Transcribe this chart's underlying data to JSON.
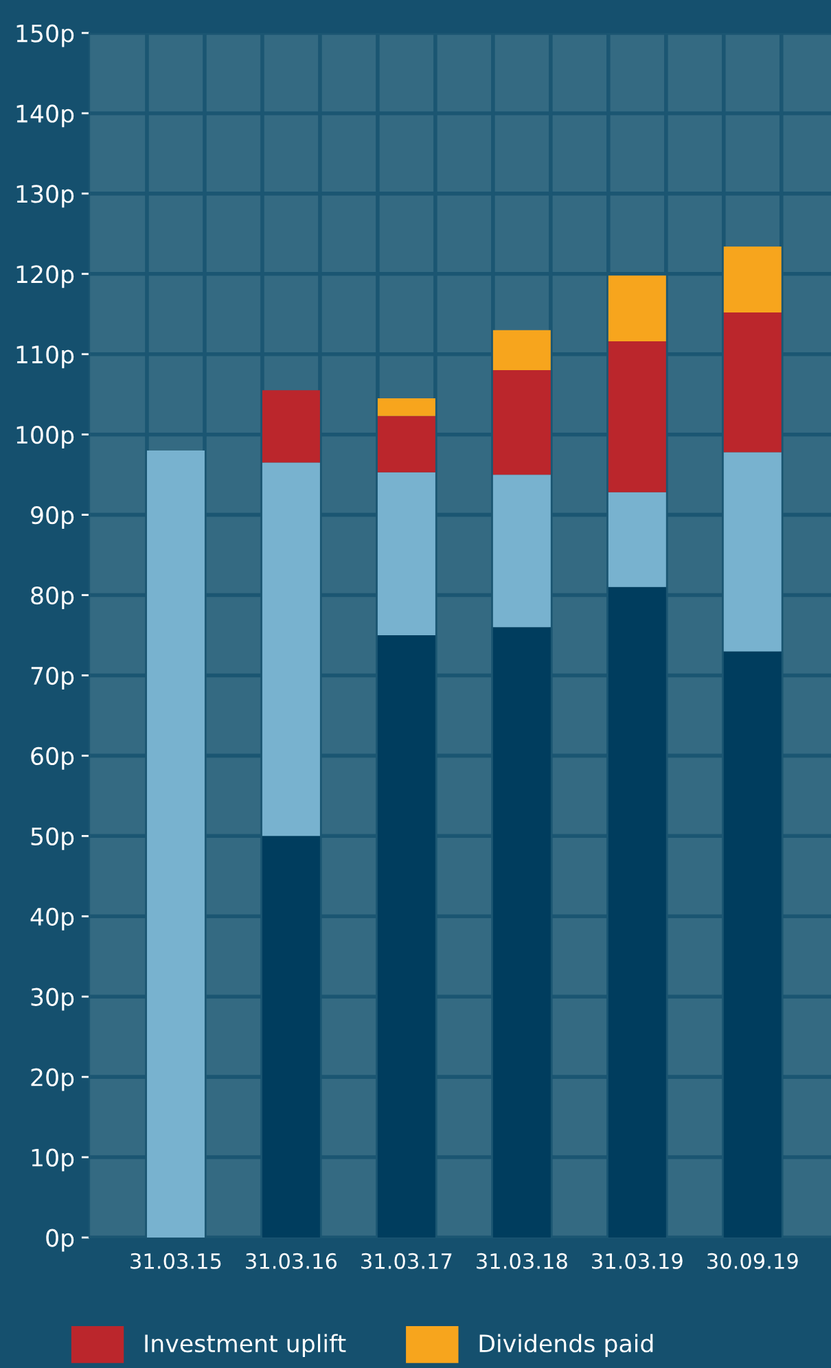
{
  "chart_data": {
    "type": "bar",
    "stacked": true,
    "categories": [
      "31.03.15",
      "31.03.16",
      "31.03.17",
      "31.03.18",
      "31.03.19",
      "30.09.19"
    ],
    "series": [
      {
        "color": "#003d5e",
        "values": [
          null,
          50,
          75,
          76,
          81,
          73
        ]
      },
      {
        "color": "#78b2cf",
        "values": [
          98,
          46.5,
          20.3,
          19,
          11.8,
          24.8
        ]
      },
      {
        "name": "Investment uplift",
        "color": "#bb262c",
        "values": [
          null,
          9,
          7,
          13,
          18.8,
          17.4
        ]
      },
      {
        "name": "Dividends paid",
        "color": "#f7a51d",
        "values": [
          null,
          null,
          2.2,
          5,
          8.2,
          8.2
        ]
      }
    ],
    "ylim": [
      0,
      150
    ],
    "yticks": [
      {
        "value": 0,
        "label": "0p"
      },
      {
        "value": 10,
        "label": "10p"
      },
      {
        "value": 20,
        "label": "20p"
      },
      {
        "value": 30,
        "label": "30p"
      },
      {
        "value": 40,
        "label": "40p"
      },
      {
        "value": 50,
        "label": "50p"
      },
      {
        "value": 60,
        "label": "60p"
      },
      {
        "value": 70,
        "label": "70p"
      },
      {
        "value": 80,
        "label": "80p"
      },
      {
        "value": 90,
        "label": "90p"
      },
      {
        "value": 100,
        "label": "100p"
      },
      {
        "value": 110,
        "label": "110p"
      },
      {
        "value": 120,
        "label": "120p"
      },
      {
        "value": 130,
        "label": "130p"
      },
      {
        "value": 140,
        "label": "140p"
      },
      {
        "value": 150,
        "label": "150p"
      }
    ],
    "grid": true,
    "legend": "bottom"
  }
}
